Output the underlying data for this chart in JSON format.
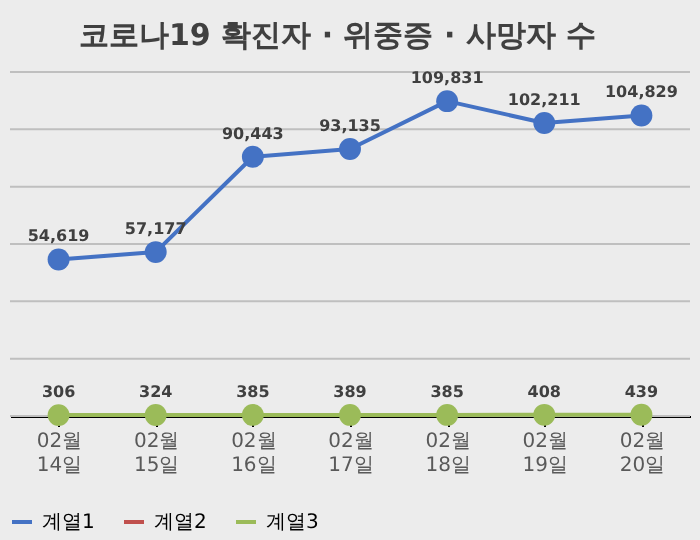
{
  "chart_data": {
    "type": "line",
    "title": "코로나19 확진자 · 위중증 · 사망자 수",
    "categories": [
      "02월 14일",
      "02월 15일",
      "02월 16일",
      "02월 17일",
      "02월 18일",
      "02월 19일",
      "02월 20일"
    ],
    "series": [
      {
        "name": "계열1",
        "color": "#4472c4",
        "values": [
          54619,
          57177,
          90443,
          93135,
          109831,
          102211,
          104829
        ],
        "value_labels": [
          "54,619",
          "57,177",
          "90,443",
          "93,135",
          "109,831",
          "102,211",
          "104,829"
        ]
      },
      {
        "name": "계열2",
        "color": "#c0504d",
        "values": [
          null,
          null,
          null,
          null,
          null,
          null,
          null
        ]
      },
      {
        "name": "계열3",
        "color": "#9bbb59",
        "values": [
          306,
          324,
          385,
          389,
          385,
          408,
          439
        ],
        "value_labels": [
          "306",
          "324",
          "385",
          "389",
          "385",
          "408",
          "439"
        ]
      }
    ],
    "ylim": [
      0,
      120000
    ],
    "yticks": [
      {
        "value": 0,
        "label": null
      },
      {
        "value": 20000,
        "label": null
      },
      {
        "value": 40000,
        "label": null
      },
      {
        "value": 60000,
        "label": null
      },
      {
        "value": 80000,
        "label": null
      },
      {
        "value": 100000,
        "label": null
      },
      {
        "value": 120000,
        "label": null
      }
    ],
    "tick_labels": "x",
    "grid": "y",
    "legend": "bottom",
    "marker": "circle"
  }
}
